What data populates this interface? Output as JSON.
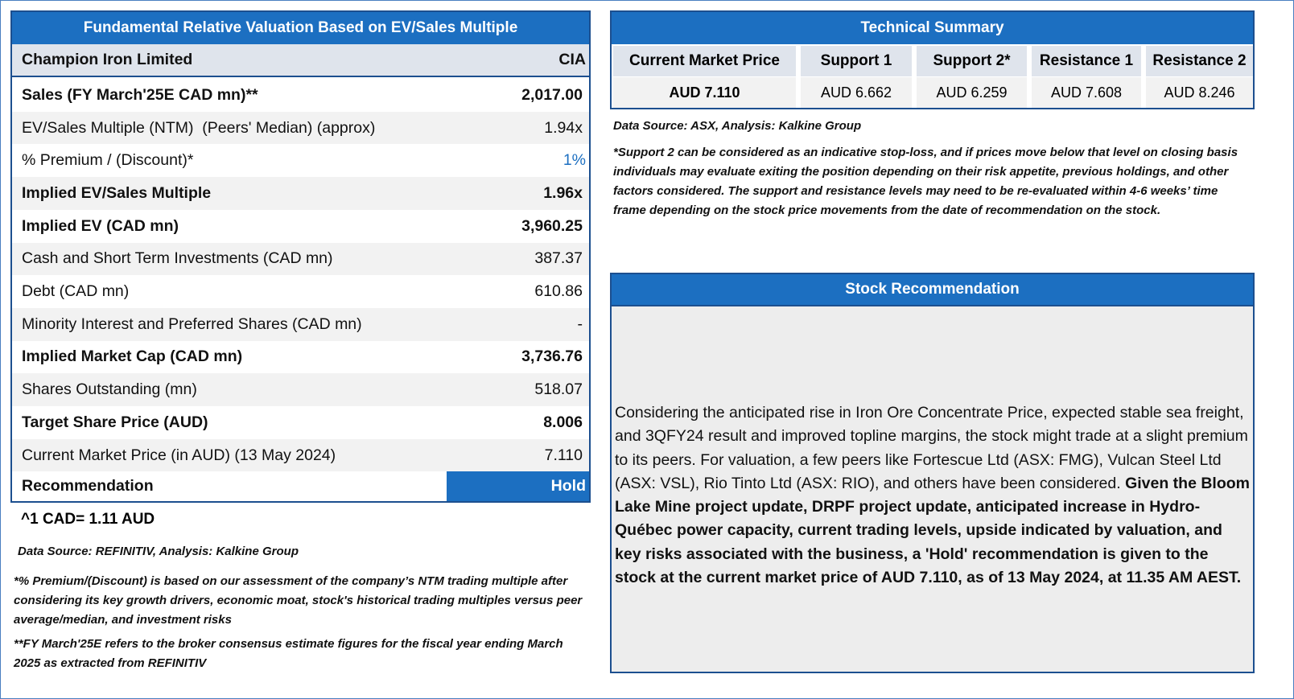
{
  "valuation": {
    "title": "Fundamental Relative Valuation Based on EV/Sales Multiple",
    "header": [
      "Champion Iron Limited",
      "CIA"
    ],
    "rows": [
      [
        "Sales (FY March'25E CAD mn)**",
        "2,017.00"
      ],
      [
        "EV/Sales Multiple (NTM)  (Peers' Median) (approx)",
        "1.94x"
      ],
      [
        "% Premium / (Discount)*",
        "1%"
      ],
      [
        "Implied EV/Sales Multiple",
        "1.96x"
      ],
      [
        "Implied EV (CAD mn)",
        "3,960.25"
      ],
      [
        "Cash and Short Term Investments (CAD mn)",
        "387.37"
      ],
      [
        "Debt (CAD mn)",
        "610.86"
      ],
      [
        "Minority Interest and Preferred Shares (CAD mn)",
        "-"
      ],
      [
        "Implied Market Cap (CAD mn)",
        "3,736.76"
      ],
      [
        "Shares Outstanding (mn)",
        "518.07"
      ],
      [
        "Target Share Price (AUD)",
        "8.006"
      ],
      [
        "Current Market Price (in AUD) (13 May 2024)",
        "7.110"
      ]
    ],
    "recommendation": [
      "Recommendation",
      "Hold"
    ],
    "fx_note": "^1 CAD= 1.11 AUD",
    "source": "Data Source: REFINITIV, Analysis: Kalkine Group",
    "notes": [
      "*% Premium/(Discount) is based on our assessment of the company’s NTM trading multiple after considering its key growth drivers, economic moat, stock's historical trading multiples versus peer average/median, and investment risks",
      "**FY March'25E refers to the broker consensus estimate figures for the fiscal year ending March 2025  as extracted from REFINITIV"
    ]
  },
  "technical": {
    "title": "Technical Summary",
    "headers": [
      "Current Market Price",
      "Support 1",
      "Support 2*",
      "Resistance 1",
      "Resistance 2"
    ],
    "values": [
      "AUD 7.110",
      "AUD 6.662",
      "AUD 6.259",
      "AUD 7.608",
      "AUD 8.246"
    ],
    "source": "Data Source: ASX, Analysis: Kalkine Group",
    "note": "*Support 2 can be considered as an indicative stop-loss, and if prices move below that level on closing basis individuals may evaluate exiting the position depending on their risk appetite, previous holdings, and other factors considered. The support and resistance levels may need to be re-evaluated within 4-6 weeks’ time frame depending on the stock price movements from the date of recommendation on the stock."
  },
  "stock_recommendation": {
    "title": "Stock Recommendation",
    "text": "Considering the anticipated rise in Iron Ore Concentrate Price, expected stable sea freight, and 3QFY24 result and improved topline margins, the stock might trade at a slight premium to its peers. For valuation, a few peers like Fortescue Ltd (ASX: FMG), Vulcan Steel Ltd (ASX: VSL), Rio Tinto Ltd (ASX: RIO), and others have been considered. ",
    "text_bold": "Given the Bloom Lake Mine project update, DRPF project update, anticipated increase in Hydro-Québec power capacity, current trading levels, upside indicated by valuation, and key risks associated with the business, a 'Hold' recommendation is given to the stock at the current market price of AUD 7.110, as of 13 May 2024, at 11.35 AM AEST."
  }
}
